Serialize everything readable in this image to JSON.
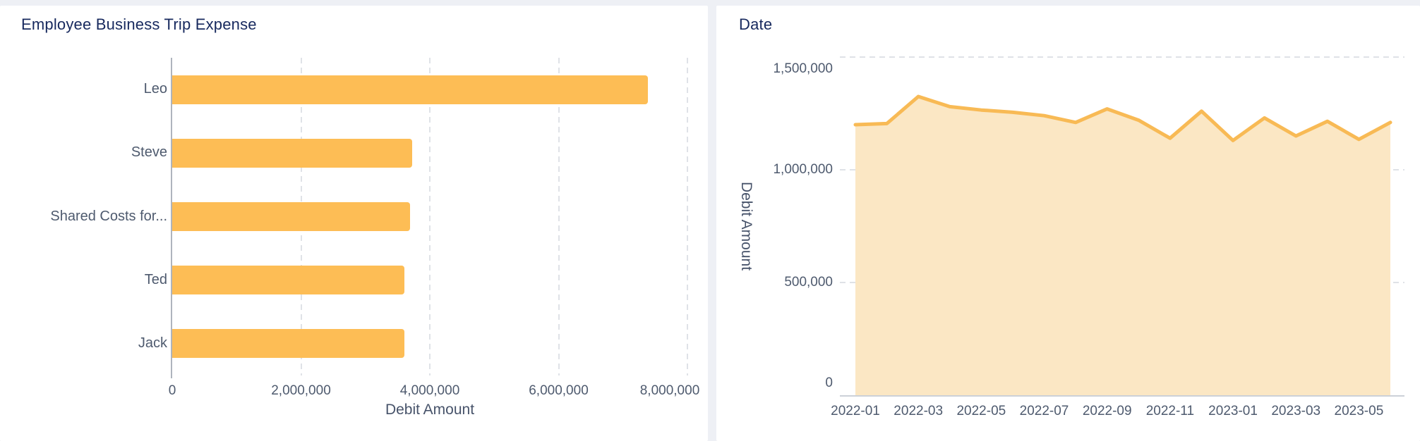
{
  "page": {
    "background_color": "#EEF0F5",
    "card_color": "#FFFFFF"
  },
  "colors": {
    "title_navy": "#17295E",
    "label_slate": "#4E5A6E",
    "gridline_gray": "#DFE2E7",
    "bar_orange": "#FDBD55",
    "line_orange": "#F8BA55",
    "area_fill": "#FBE7C4"
  },
  "chart_data": [
    {
      "type": "bar",
      "orientation": "horizontal",
      "title": "Employee Business Trip Expense",
      "categories": [
        "Leo",
        "Steve",
        "Shared Costs for...",
        "Ted",
        "Jack"
      ],
      "values": [
        7390000,
        3730000,
        3690000,
        3610000,
        3600000
      ],
      "xlabel": "Debit Amount",
      "xlim": [
        0,
        8000000
      ],
      "xticks": [
        0,
        2000000,
        4000000,
        6000000,
        8000000
      ],
      "grid": "vertical-dashed",
      "legend": "none",
      "bar_color": "#FDBD55"
    },
    {
      "type": "area",
      "title": "Date",
      "x": [
        "2022-01",
        "2022-02",
        "2022-03",
        "2022-04",
        "2022-05",
        "2022-06",
        "2022-07",
        "2022-08",
        "2022-09",
        "2022-10",
        "2022-11",
        "2022-12",
        "2023-01",
        "2023-02",
        "2023-03",
        "2023-04",
        "2023-05",
        "2023-06"
      ],
      "values": [
        1200000,
        1205000,
        1325000,
        1280000,
        1265000,
        1255000,
        1240000,
        1210000,
        1270000,
        1220000,
        1140000,
        1260000,
        1130000,
        1230000,
        1150000,
        1215000,
        1135000,
        1210000
      ],
      "ylabel": "Debit Amount",
      "ylim": [
        0,
        1500000
      ],
      "yticks": [
        0,
        500000,
        1000000,
        1500000
      ],
      "xtick_label_every": 2,
      "grid": "horizontal-dashed",
      "legend": "none",
      "line_color": "#F8BA55",
      "fill_color": "#FBE7C4"
    }
  ]
}
